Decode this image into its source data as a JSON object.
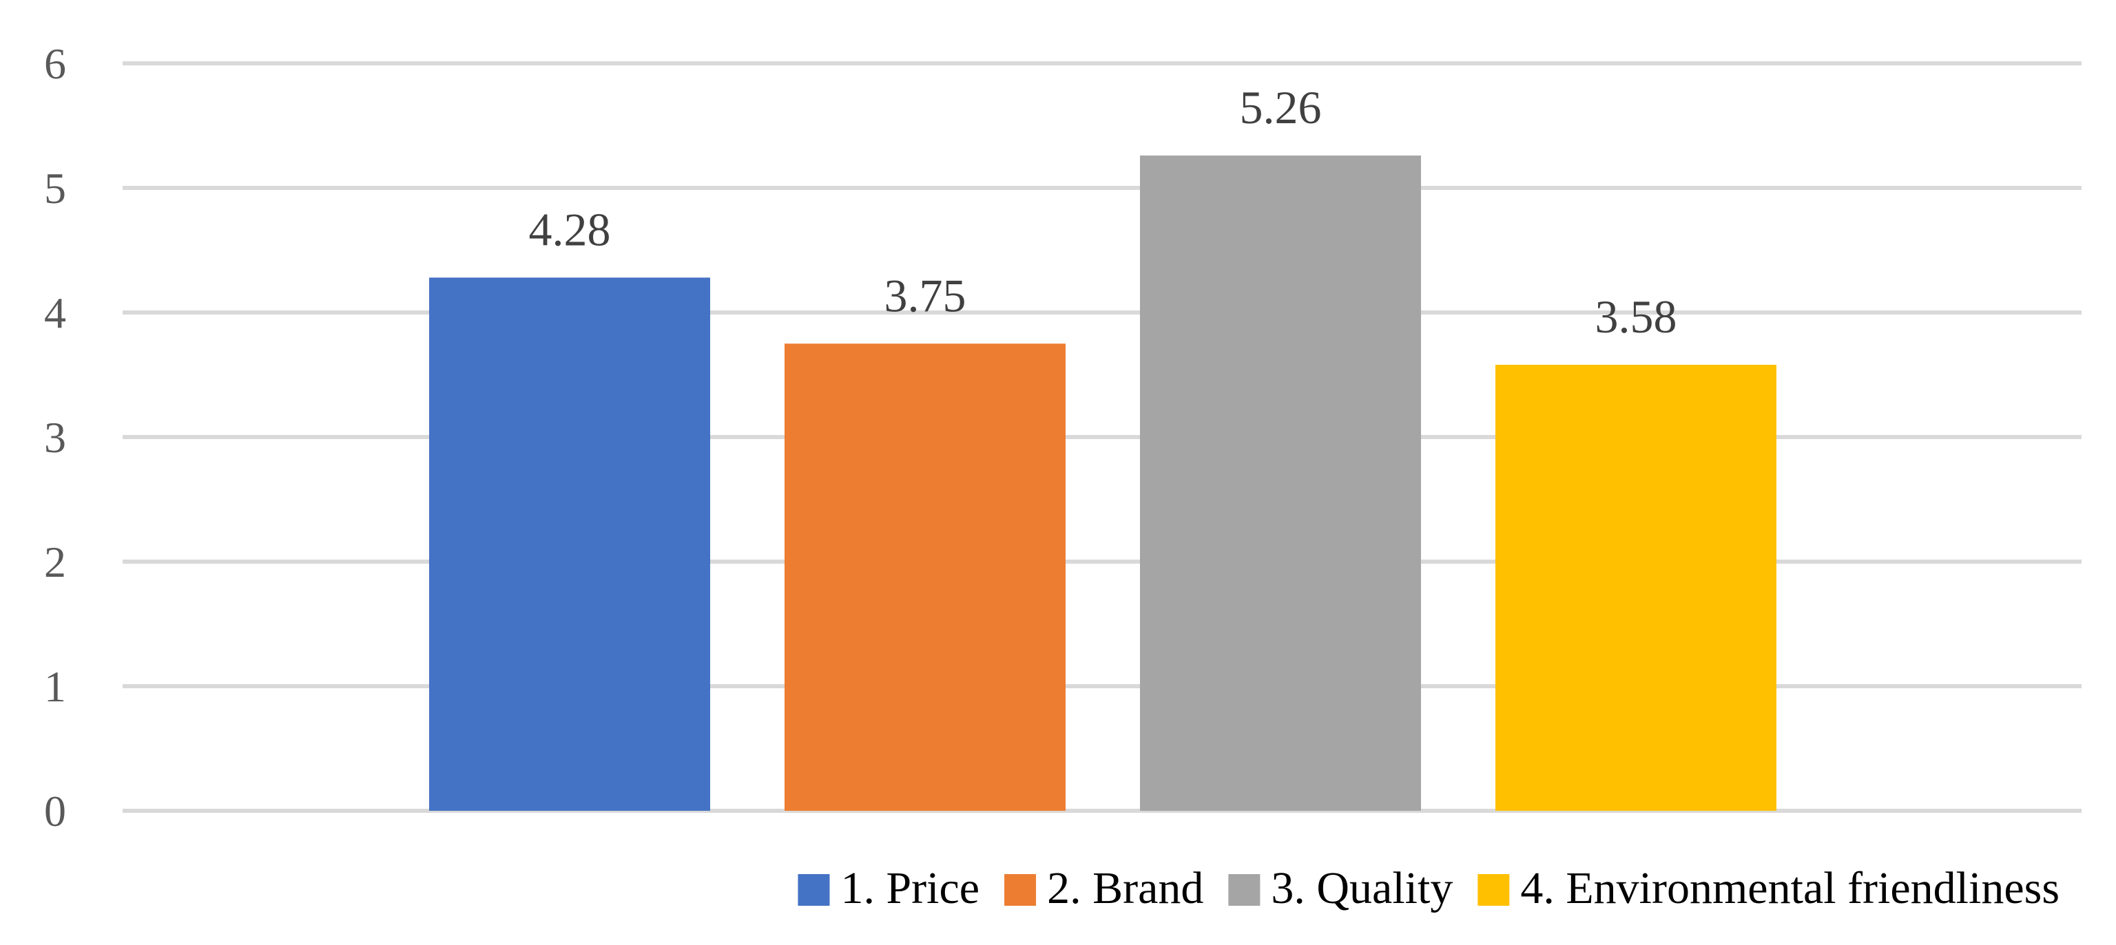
{
  "chart_data": {
    "type": "bar",
    "title": "",
    "xlabel": "",
    "ylabel": "",
    "ylim": [
      0,
      6
    ],
    "yticks": [
      0,
      1,
      2,
      3,
      4,
      5,
      6
    ],
    "grid": true,
    "legend_position": "bottom",
    "series": [
      {
        "name": "1. Price",
        "value": 4.28,
        "label": "4.28",
        "color": "#4472C4"
      },
      {
        "name": "2. Brand",
        "value": 3.75,
        "label": "3.75",
        "color": "#ED7D31"
      },
      {
        "name": "3. Quality",
        "value": 5.26,
        "label": "5.26",
        "color": "#A5A5A5"
      },
      {
        "name": "4. Environmental friendliness",
        "value": 3.58,
        "label": "3.58",
        "color": "#FFC000"
      }
    ]
  }
}
